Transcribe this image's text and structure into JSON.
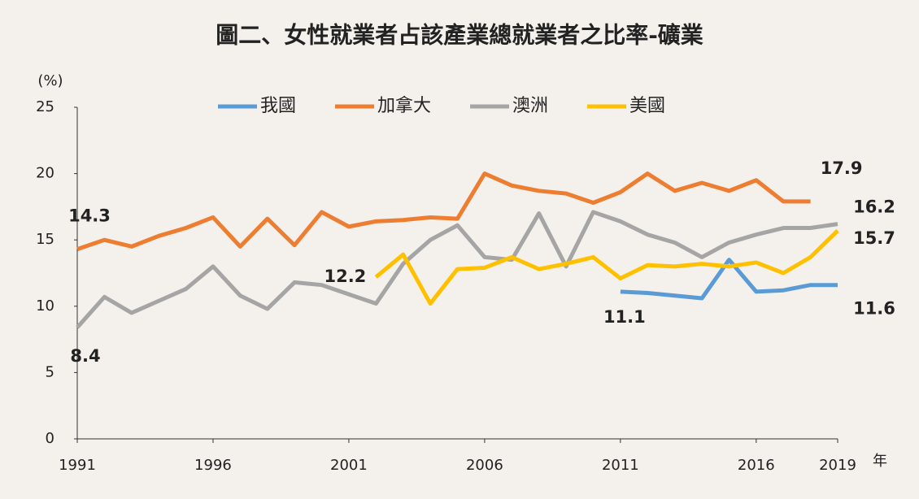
{
  "chart_data": {
    "type": "line",
    "title": "圖二、女性就業者占該產業總就業者之比率-礦業",
    "y_unit": "(%)",
    "x_unit": "年",
    "x": [
      1991,
      1992,
      1993,
      1994,
      1995,
      1996,
      1997,
      1998,
      1999,
      2000,
      2001,
      2002,
      2003,
      2004,
      2005,
      2006,
      2007,
      2008,
      2009,
      2010,
      2011,
      2012,
      2013,
      2014,
      2015,
      2016,
      2017,
      2018,
      2019
    ],
    "xlim": [
      1991,
      2019
    ],
    "xticks": [
      1991,
      1996,
      2001,
      2006,
      2011,
      2016,
      2019
    ],
    "ylim": [
      0,
      25
    ],
    "yticks": [
      0,
      5,
      10,
      15,
      20,
      25
    ],
    "grid": false,
    "legend": "top",
    "series": [
      {
        "name": "我國",
        "color": "#5b9bd5",
        "label_at": [
          20,
          28
        ],
        "values": [
          null,
          null,
          null,
          null,
          null,
          null,
          null,
          null,
          null,
          null,
          null,
          null,
          null,
          null,
          null,
          null,
          null,
          null,
          null,
          null,
          11.1,
          11.0,
          10.8,
          10.6,
          13.5,
          11.1,
          11.2,
          11.6,
          11.6
        ]
      },
      {
        "name": "加拿大",
        "color": "#ed7d31",
        "label_at": [
          0,
          27
        ],
        "values": [
          14.3,
          15.0,
          14.5,
          15.3,
          15.9,
          16.7,
          14.5,
          16.6,
          14.6,
          17.1,
          16.0,
          16.4,
          16.5,
          16.7,
          16.6,
          20.0,
          19.1,
          18.7,
          18.5,
          17.8,
          18.6,
          20.0,
          18.7,
          19.3,
          18.7,
          19.5,
          17.9,
          17.9,
          null
        ]
      },
      {
        "name": "澳洲",
        "color": "#a5a5a5",
        "label_at": [
          0,
          28
        ],
        "values": [
          8.4,
          10.7,
          9.5,
          10.4,
          11.3,
          13.0,
          10.8,
          9.8,
          11.8,
          11.6,
          10.9,
          10.2,
          13.2,
          15.0,
          16.1,
          13.7,
          13.5,
          17.0,
          13.0,
          17.1,
          16.4,
          15.4,
          14.8,
          13.7,
          14.8,
          15.4,
          15.9,
          15.9,
          16.2
        ]
      },
      {
        "name": "美國",
        "color": "#ffc000",
        "label_at": [
          11,
          28
        ],
        "values": [
          null,
          null,
          null,
          null,
          null,
          null,
          null,
          null,
          null,
          null,
          null,
          12.2,
          13.9,
          10.2,
          12.8,
          12.9,
          13.7,
          12.8,
          13.2,
          13.7,
          12.1,
          13.1,
          13.0,
          13.2,
          13.0,
          13.3,
          12.5,
          13.7,
          15.7
        ]
      }
    ]
  }
}
